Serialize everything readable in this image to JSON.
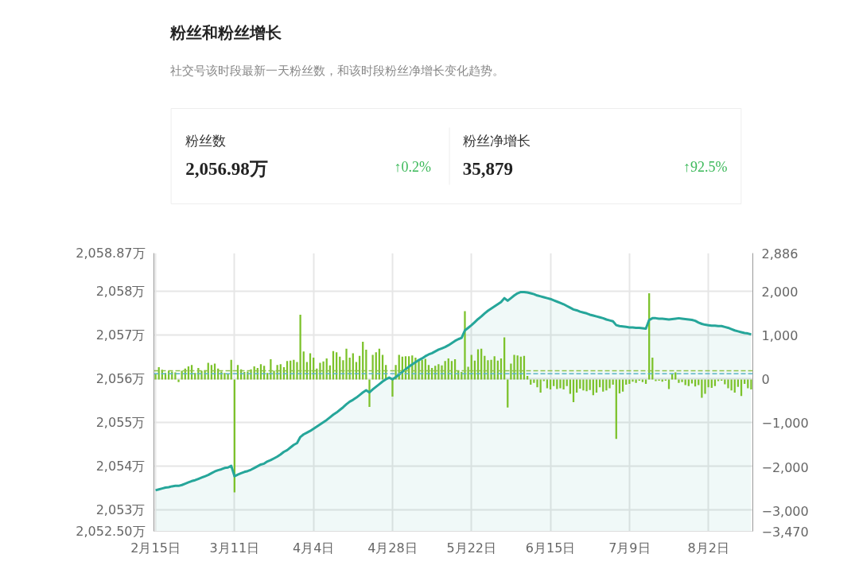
{
  "chart_data": [
    {
      "type": "other",
      "title": "粉丝和粉丝增长",
      "subtitle": "社交号该时段最新一天粉丝数，和该时段粉丝净增长变化趋势。",
      "annotations": [
        "粉丝数",
        "2,056.98万",
        "↑0.2%",
        "粉丝净增长",
        "35,879",
        "↑92.5%"
      ]
    },
    {
      "type": "bar",
      "categories": [
        "2月15日",
        null,
        null,
        null,
        null,
        null,
        null,
        null,
        null,
        null,
        null,
        null,
        null,
        null,
        null,
        null,
        null,
        null,
        null,
        null,
        null,
        null,
        null,
        null,
        "3月11日",
        null,
        null,
        null,
        null,
        null,
        null,
        null,
        null,
        null,
        null,
        null,
        null,
        null,
        null,
        null,
        null,
        null,
        null,
        null,
        null,
        null,
        null,
        null,
        "4月4日",
        null,
        null,
        null,
        null,
        null,
        null,
        null,
        null,
        null,
        null,
        null,
        null,
        null,
        null,
        null,
        null,
        null,
        null,
        null,
        null,
        null,
        null,
        null,
        "4月28日",
        null,
        null,
        null,
        null,
        null,
        null,
        null,
        null,
        null,
        null,
        null,
        null,
        null,
        null,
        null,
        null,
        null,
        null,
        null,
        null,
        null,
        null,
        null,
        "5月22日",
        null,
        null,
        null,
        null,
        null,
        null,
        null,
        null,
        null,
        null,
        null,
        null,
        null,
        null,
        null,
        null,
        null,
        null,
        null,
        null,
        null,
        null,
        null,
        "6月15日",
        null,
        null,
        null,
        null,
        null,
        null,
        null,
        null,
        null,
        null,
        null,
        null,
        null,
        null,
        null,
        null,
        null,
        null,
        null,
        null,
        null,
        null,
        null,
        "7月9日",
        null,
        null,
        null,
        null,
        null,
        null,
        null,
        null,
        null,
        null,
        null,
        null,
        null,
        null,
        null,
        null,
        null,
        null,
        null,
        null,
        null,
        null,
        null,
        "8月2日",
        null,
        null,
        null,
        null,
        null,
        null,
        null,
        null,
        null,
        null,
        null,
        null,
        null
      ],
      "series": [
        {
          "type": "area",
          "color": "#26a69a",
          "values": [
            2053.44,
            2053.46,
            2053.48,
            2053.5,
            2053.51,
            2053.53,
            2053.54,
            2053.54,
            2053.56,
            2053.59,
            2053.62,
            2053.65,
            2053.67,
            2053.7,
            2053.73,
            2053.76,
            2053.79,
            2053.83,
            2053.87,
            2053.9,
            2053.92,
            2053.95,
            2053.96,
            2054.0,
            2053.76,
            2053.8,
            2053.83,
            2053.86,
            2053.88,
            2053.91,
            2053.95,
            2053.99,
            2054.03,
            2054.05,
            2054.1,
            2054.13,
            2054.17,
            2054.21,
            2054.26,
            2054.32,
            2054.36,
            2054.42,
            2054.48,
            2054.52,
            2054.66,
            2054.72,
            2054.76,
            2054.8,
            2054.85,
            2054.9,
            2054.95,
            2055.0,
            2055.05,
            2055.11,
            2055.17,
            2055.22,
            2055.28,
            2055.34,
            2055.41,
            2055.47,
            2055.51,
            2055.56,
            2055.62,
            2055.68,
            2055.73,
            2055.68,
            2055.75,
            2055.81,
            2055.87,
            2055.93,
            2055.98,
            2056.02,
            2055.98,
            2056.03,
            2056.09,
            2056.15,
            2056.21,
            2056.27,
            2056.32,
            2056.37,
            2056.42,
            2056.46,
            2056.51,
            2056.55,
            2056.58,
            2056.62,
            2056.66,
            2056.69,
            2056.72,
            2056.76,
            2056.81,
            2056.86,
            2056.9,
            2056.93,
            2057.1,
            2057.16,
            2057.22,
            2057.29,
            2057.36,
            2057.42,
            2057.49,
            2057.55,
            2057.6,
            2057.65,
            2057.7,
            2057.75,
            2057.84,
            2057.78,
            2057.84,
            2057.9,
            2057.95,
            2057.98,
            2057.98,
            2057.97,
            2057.95,
            2057.93,
            2057.9,
            2057.88,
            2057.86,
            2057.84,
            2057.82,
            2057.79,
            2057.76,
            2057.73,
            2057.7,
            2057.66,
            2057.62,
            2057.58,
            2057.56,
            2057.53,
            2057.51,
            2057.49,
            2057.46,
            2057.44,
            2057.42,
            2057.4,
            2057.38,
            2057.35,
            2057.33,
            2057.31,
            2057.22,
            2057.2,
            2057.19,
            2057.18,
            2057.17,
            2057.17,
            2057.16,
            2057.16,
            2057.15,
            2057.14,
            2057.34,
            2057.38,
            2057.38,
            2057.37,
            2057.37,
            2057.36,
            2057.35,
            2057.36,
            2057.37,
            2057.38,
            2057.37,
            2057.36,
            2057.35,
            2057.34,
            2057.32,
            2057.28,
            2057.25,
            2057.23,
            2057.22,
            2057.21,
            2057.21,
            2057.2,
            2057.2,
            2057.18,
            2057.16,
            2057.13,
            2057.1,
            2057.08,
            2057.06,
            2057.04,
            2057.03,
            2057.01
          ]
        },
        {
          "type": "bar",
          "axis": "y2",
          "color": "#7cc22b",
          "values": [
            120,
            280,
            220,
            150,
            200,
            180,
            160,
            -60,
            200,
            250,
            300,
            330,
            150,
            260,
            200,
            210,
            380,
            330,
            360,
            250,
            180,
            150,
            120,
            450,
            -2580,
            330,
            230,
            170,
            180,
            230,
            300,
            260,
            350,
            310,
            150,
            460,
            200,
            330,
            350,
            280,
            420,
            430,
            450,
            400,
            1480,
            640,
            400,
            600,
            500,
            250,
            380,
            410,
            480,
            320,
            650,
            620,
            520,
            440,
            700,
            500,
            600,
            400,
            540,
            860,
            680,
            -630,
            560,
            620,
            700,
            560,
            330,
            null,
            -390,
            330,
            560,
            520,
            530,
            530,
            550,
            500,
            440,
            450,
            470,
            330,
            260,
            310,
            350,
            320,
            420,
            480,
            420,
            460,
            200,
            170,
            1560,
            290,
            560,
            430,
            690,
            700,
            540,
            440,
            450,
            530,
            430,
            480,
            960,
            -640,
            360,
            560,
            550,
            520,
            540,
            80,
            -120,
            -80,
            -180,
            -300,
            -40,
            -200,
            -230,
            -150,
            -220,
            -200,
            -230,
            -150,
            -330,
            -520,
            -300,
            -210,
            -250,
            -270,
            -240,
            -360,
            -300,
            -180,
            -280,
            -250,
            -200,
            -120,
            -1360,
            -320,
            -280,
            -120,
            -100,
            -50,
            -80,
            -30,
            -60,
            -100,
            1970,
            500,
            -40,
            -30,
            -50,
            -30,
            -220,
            120,
            160,
            -80,
            -60,
            -130,
            -150,
            -90,
            -160,
            -130,
            -420,
            -330,
            -180,
            -190,
            -150,
            -40,
            -30,
            -110,
            -200,
            -250,
            -300,
            -170,
            -380,
            -100,
            -200,
            -230
          ]
        }
      ],
      "ylim": [
        2052.5,
        2058.87
      ],
      "yticks": [
        {
          "value": 2052.5,
          "label": "2,052.50万"
        },
        {
          "value": 2053,
          "label": "2,053万"
        },
        {
          "value": 2054,
          "label": "2,054万"
        },
        {
          "value": 2055,
          "label": "2,055万"
        },
        {
          "value": 2056,
          "label": "2,056万"
        },
        {
          "value": 2057,
          "label": "2,057万"
        },
        {
          "value": 2058,
          "label": "2,058万"
        },
        {
          "value": 2058.87,
          "label": "2,058.87万"
        }
      ],
      "y2lim": [
        -3470,
        2886
      ],
      "y2ticks": [
        {
          "value": -3470,
          "label": "−3,470"
        },
        {
          "value": -3000,
          "label": "−3,000"
        },
        {
          "value": -2000,
          "label": "−2,000"
        },
        {
          "value": -1000,
          "label": "−1,000"
        },
        0,
        {
          "value": 1000,
          "label": "1,000"
        },
        {
          "value": 2000,
          "label": "2,000"
        },
        {
          "value": 2886,
          "label": "2,886"
        }
      ],
      "ref_lines": [
        {
          "axis": "y2",
          "value": 200,
          "color": "#8bc34a",
          "line_style": "dashed"
        },
        {
          "axis": "y2",
          "value": 130,
          "color": "#5ab4c8",
          "line_style": "dashed"
        }
      ],
      "grid": true
    }
  ]
}
